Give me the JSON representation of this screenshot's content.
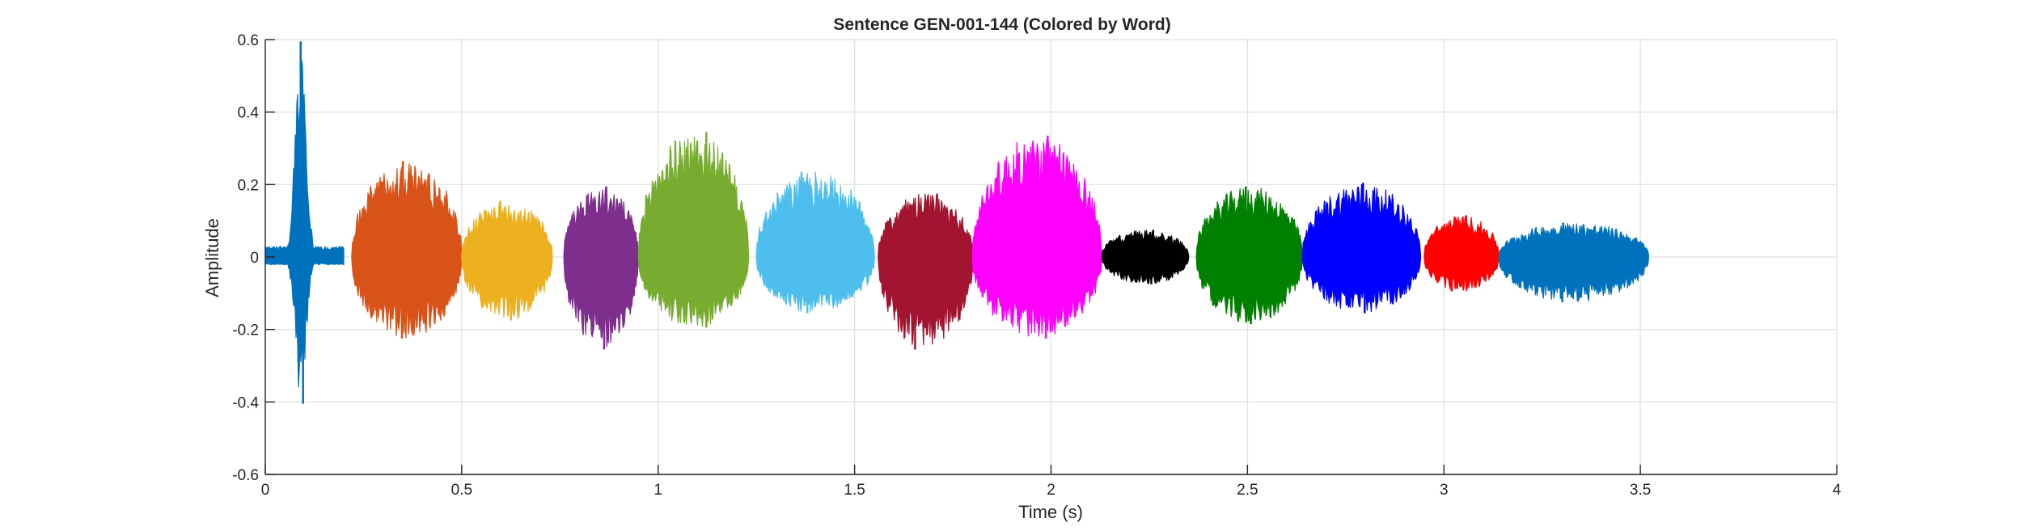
{
  "chart_data": {
    "type": "line",
    "title": "Sentence GEN-001-144 (Colored by Word)",
    "xlabel": "Time (s)",
    "ylabel": "Amplitude",
    "xlim": [
      0,
      4
    ],
    "ylim": [
      -0.6,
      0.6
    ],
    "xticks": [
      0,
      0.5,
      1,
      1.5,
      2,
      2.5,
      3,
      3.5,
      4
    ],
    "xtick_labels": [
      "0",
      "0.5",
      "1",
      "1.5",
      "2",
      "2.5",
      "3",
      "3.5",
      "4"
    ],
    "yticks": [
      -0.6,
      -0.4,
      -0.2,
      0,
      0.2,
      0.4,
      0.6
    ],
    "ytick_labels": [
      "-0.6",
      "-0.4",
      "-0.2",
      "0",
      "0.2",
      "0.4",
      "0.6"
    ],
    "grid": true,
    "series": [
      {
        "color": "#0072BD",
        "start": 0.0,
        "end": 0.2,
        "max": 0.595,
        "min": -0.405,
        "shape": "spike",
        "peak_at": 0.09
      },
      {
        "color": "#D95319",
        "start": 0.22,
        "end": 0.5,
        "max": 0.265,
        "min": -0.225,
        "shape": "burst"
      },
      {
        "color": "#EDB120",
        "start": 0.5,
        "end": 0.73,
        "max": 0.155,
        "min": -0.175,
        "shape": "burst"
      },
      {
        "color": "#7E2F8E",
        "start": 0.76,
        "end": 0.95,
        "max": 0.195,
        "min": -0.255,
        "shape": "burst"
      },
      {
        "color": "#77AC30",
        "start": 0.95,
        "end": 1.23,
        "max": 0.345,
        "min": -0.195,
        "shape": "burst"
      },
      {
        "color": "#4DBEEE",
        "start": 1.25,
        "end": 1.55,
        "max": 0.235,
        "min": -0.155,
        "shape": "burst"
      },
      {
        "color": "#A2142F",
        "start": 1.56,
        "end": 1.8,
        "max": 0.175,
        "min": -0.255,
        "shape": "burst"
      },
      {
        "color": "#FF00FF",
        "start": 1.8,
        "end": 2.13,
        "max": 0.335,
        "min": -0.225,
        "shape": "burst"
      },
      {
        "color": "#000000",
        "start": 2.13,
        "end": 2.35,
        "max": 0.075,
        "min": -0.075,
        "shape": "burst"
      },
      {
        "color": "#008000",
        "start": 2.37,
        "end": 2.64,
        "max": 0.195,
        "min": -0.185,
        "shape": "burst"
      },
      {
        "color": "#0000FF",
        "start": 2.64,
        "end": 2.94,
        "max": 0.205,
        "min": -0.155,
        "shape": "burst"
      },
      {
        "color": "#FF0000",
        "start": 2.95,
        "end": 3.14,
        "max": 0.115,
        "min": -0.095,
        "shape": "burst"
      },
      {
        "color": "#0072BD",
        "start": 3.14,
        "end": 3.52,
        "max": 0.095,
        "min": -0.125,
        "shape": "burst"
      }
    ]
  }
}
